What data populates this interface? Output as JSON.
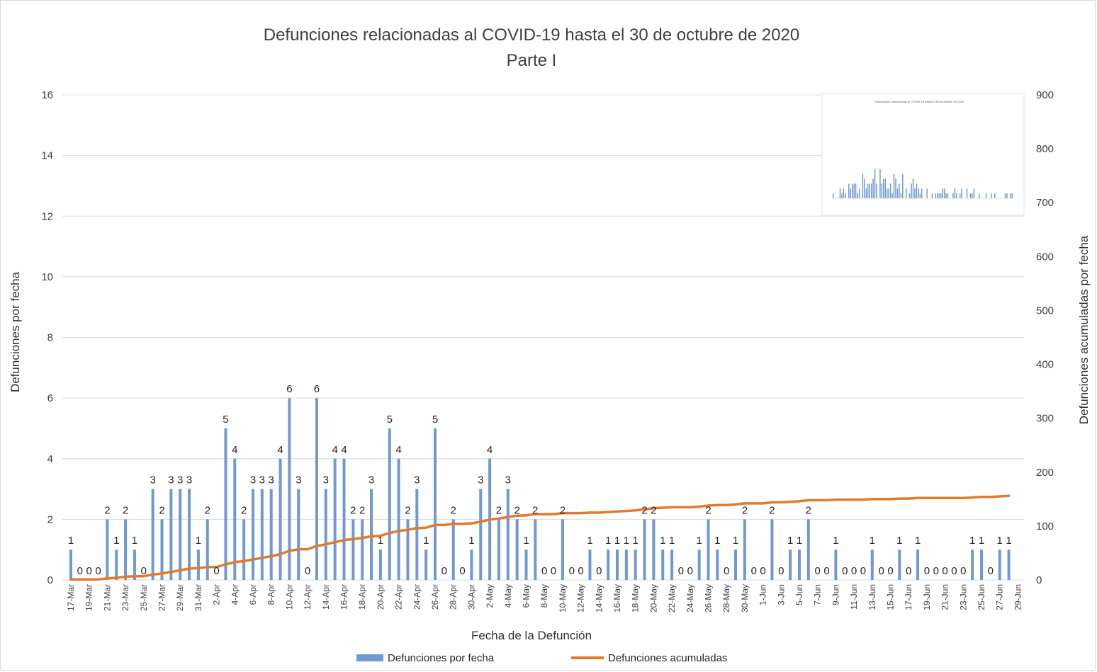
{
  "chart_data": {
    "type": "bar+line",
    "title": "Defunciones relacionadas al COVID-19 hasta el 30 de octubre de 2020",
    "subtitle": "Parte I",
    "xlabel": "Fecha de la Defunción",
    "ylabel": "Defunciones por fecha",
    "y2label": "Defunciones acumuladas por fecha",
    "ylim": [
      0,
      16
    ],
    "y_ticks": [
      0,
      2,
      4,
      6,
      8,
      10,
      12,
      14,
      16
    ],
    "y2lim": [
      0,
      900
    ],
    "y2_ticks": [
      0,
      100,
      200,
      300,
      400,
      500,
      600,
      700,
      800,
      900
    ],
    "x_tick_labels": [
      "17-Mar",
      "19-Mar",
      "21-Mar",
      "23-Mar",
      "25-Mar",
      "27-Mar",
      "29-Mar",
      "31-Mar",
      "2-Apr",
      "4-Apr",
      "6-Apr",
      "8-Apr",
      "10-Apr",
      "12-Apr",
      "14-Apr",
      "16-Apr",
      "18-Apr",
      "20-Apr",
      "22-Apr",
      "24-Apr",
      "26-Apr",
      "28-Apr",
      "30-Apr",
      "2-May",
      "4-May",
      "6-May",
      "8-May",
      "10-May",
      "12-May",
      "14-May",
      "16-May",
      "18-May",
      "20-May",
      "22-May",
      "24-May",
      "26-May",
      "28-May",
      "30-May",
      "1-Jun",
      "3-Jun",
      "5-Jun",
      "7-Jun",
      "9-Jun",
      "11-Jun",
      "13-Jun",
      "15-Jun",
      "17-Jun",
      "19-Jun",
      "21-Jun",
      "23-Jun",
      "25-Jun",
      "27-Jun",
      "29-Jun"
    ],
    "grid": true,
    "legend_position": "bottom",
    "series": [
      {
        "name": "Defunciones por fecha",
        "type": "bar",
        "axis": "left",
        "color": "#7098d3",
        "values": [
          1,
          0,
          0,
          0,
          2,
          1,
          2,
          1,
          0,
          3,
          2,
          3,
          3,
          3,
          1,
          2,
          0,
          5,
          4,
          2,
          3,
          3,
          3,
          4,
          6,
          3,
          0,
          6,
          3,
          4,
          4,
          2,
          2,
          3,
          1,
          5,
          4,
          2,
          3,
          1,
          5,
          0,
          2,
          0,
          1,
          3,
          4,
          2,
          3,
          2,
          1,
          2,
          0,
          0,
          2,
          0,
          0,
          1,
          0,
          1,
          1,
          1,
          1,
          2,
          2,
          1,
          1,
          0,
          0,
          1,
          2,
          1,
          0,
          1,
          2,
          0,
          0,
          2,
          0,
          1,
          1,
          2,
          0,
          0,
          1,
          0,
          0,
          0,
          1,
          0,
          0,
          1,
          0,
          1,
          0,
          0,
          0,
          0,
          0,
          1,
          1,
          0,
          1,
          1
        ]
      },
      {
        "name": "Defunciones acumuladas",
        "type": "line",
        "axis": "right",
        "color": "#e07b2e",
        "values": [
          1,
          1,
          1,
          1,
          3,
          4,
          6,
          7,
          7,
          10,
          12,
          15,
          18,
          21,
          22,
          24,
          24,
          29,
          33,
          35,
          38,
          41,
          44,
          48,
          54,
          57,
          57,
          63,
          66,
          70,
          74,
          76,
          78,
          81,
          82,
          87,
          91,
          93,
          96,
          97,
          102,
          102,
          104,
          104,
          105,
          108,
          112,
          114,
          117,
          119,
          120,
          122,
          122,
          122,
          124,
          124,
          124,
          125,
          125,
          126,
          127,
          128,
          129,
          131,
          133,
          134,
          135,
          135,
          135,
          136,
          138,
          139,
          139,
          140,
          142,
          142,
          142,
          144,
          144,
          145,
          146,
          148,
          148,
          148,
          149,
          149,
          149,
          149,
          150,
          150,
          150,
          151,
          151,
          152,
          152,
          152,
          152,
          152,
          152,
          153,
          154,
          154,
          155,
          156
        ]
      }
    ]
  },
  "colors": {
    "bar": "#7098d3",
    "line": "#e07b2e",
    "grid": "#d9d9d9"
  },
  "inset": {
    "title": "Defunciones relacionadas al COVID-19 hasta el 30 de octubre de 2020"
  }
}
